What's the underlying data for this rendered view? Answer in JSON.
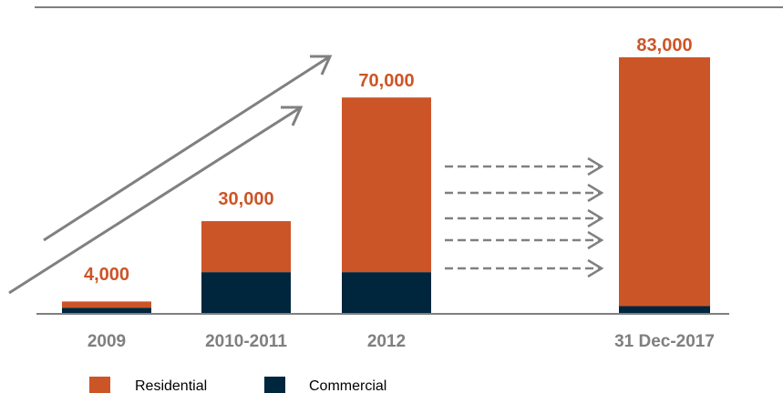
{
  "chart_data": {
    "type": "bar",
    "stacked": true,
    "categories": [
      "2009",
      "2010-2011",
      "2012",
      "31 Dec-2017"
    ],
    "series": [
      {
        "name": "Commercial",
        "values": [
          2000,
          13500,
          13500,
          2500
        ],
        "color": "#00263e"
      },
      {
        "name": "Residential",
        "values": [
          2000,
          16500,
          56500,
          80500
        ],
        "color": "#cc5527"
      }
    ],
    "totals": [
      "4,000",
      "30,000",
      "70,000",
      "83,000"
    ],
    "total_values": [
      4000,
      30000,
      70000,
      83000
    ],
    "title": "",
    "xlabel": "",
    "ylabel": "",
    "ylim": [
      0,
      100000
    ],
    "grid": false,
    "legend_position": "bottom-left",
    "annotations": [
      "upward growth arrows",
      "dashed projection arrows"
    ]
  },
  "colors": {
    "residential": "#cc5527",
    "commercial": "#00263e",
    "label_orange": "#cc5527",
    "axis_gray": "#7f7f7f",
    "arrow_gray": "#808080"
  },
  "legend": {
    "items": [
      {
        "name": "Residential",
        "color": "#cc5527"
      },
      {
        "name": "Commercial",
        "color": "#00263e"
      }
    ]
  }
}
